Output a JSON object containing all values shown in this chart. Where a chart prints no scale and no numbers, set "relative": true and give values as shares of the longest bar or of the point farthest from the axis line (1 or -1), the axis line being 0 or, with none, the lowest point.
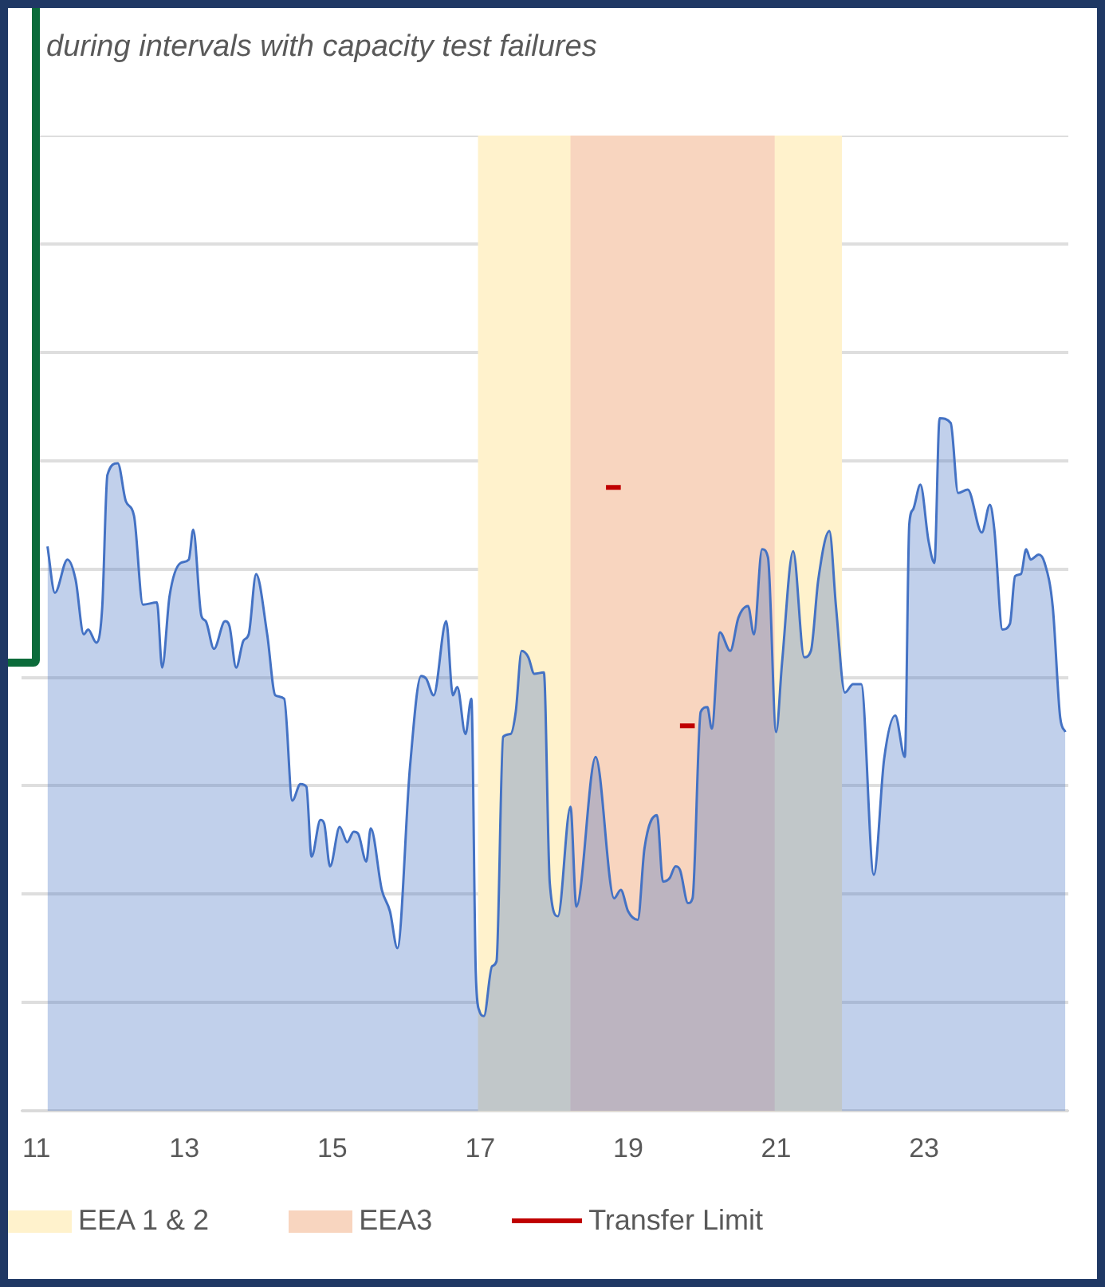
{
  "chart_data": {
    "type": "area",
    "title": "during intervals with capacity test failures",
    "relative": true,
    "xlim": [
      10.8,
      24.95
    ],
    "xticks": [
      11,
      13,
      15,
      17,
      19,
      21,
      23
    ],
    "grid": "y",
    "legend": "bottom",
    "bands": [
      {
        "axis": "x",
        "from": 16.97,
        "to": 21.89,
        "label": "EEA 1 & 2",
        "color": "#fff2cc"
      },
      {
        "axis": "x",
        "from": 18.22,
        "to": 20.98,
        "label": "EEA3",
        "color": "#f8d5bf"
      }
    ],
    "series": [
      {
        "color": "#4472c4",
        "x": [
          11.15,
          11.25,
          11.42,
          11.53,
          11.64,
          11.7,
          11.81,
          11.89,
          11.96,
          12.1,
          12.21,
          12.32,
          12.44,
          12.63,
          12.7,
          12.8,
          12.95,
          13.06,
          13.12,
          13.23,
          13.29,
          13.4,
          13.55,
          13.61,
          13.7,
          13.8,
          13.87,
          13.97,
          14.12,
          14.23,
          14.35,
          14.46,
          14.57,
          14.65,
          14.72,
          14.84,
          14.89,
          14.97,
          15.1,
          15.2,
          15.29,
          15.35,
          15.46,
          15.52,
          15.67,
          15.78,
          15.88,
          16.05,
          16.2,
          16.27,
          16.37,
          16.54,
          16.63,
          16.69,
          16.8,
          16.88,
          16.94,
          16.99,
          17.05,
          17.16,
          17.22,
          17.31,
          17.41,
          17.48,
          17.56,
          17.65,
          17.73,
          17.86,
          17.94,
          18.05,
          18.22,
          18.3,
          18.56,
          18.81,
          18.9,
          19,
          19.13,
          19.22,
          19.39,
          19.47,
          19.56,
          19.64,
          19.7,
          19.81,
          19.87,
          19.98,
          20.07,
          20.13,
          20.24,
          20.38,
          20.49,
          20.62,
          20.7,
          20.81,
          20.89,
          21,
          21.08,
          21.23,
          21.38,
          21.47,
          21.57,
          21.72,
          21.81,
          21.93,
          22.04,
          22.15,
          22.32,
          22.46,
          22.61,
          22.74,
          22.8,
          22.85,
          22.95,
          23.06,
          23.14,
          23.21,
          23.36,
          23.46,
          23.59,
          23.78,
          23.89,
          23.95,
          24.06,
          24.16,
          24.23,
          24.31,
          24.38,
          24.44,
          24.55,
          24.63,
          24.74,
          24.84,
          24.91
        ],
        "values": [
          0.815,
          0.748,
          0.796,
          0.767,
          0.688,
          0.695,
          0.676,
          0.727,
          0.918,
          0.935,
          0.88,
          0.859,
          0.731,
          0.734,
          0.64,
          0.743,
          0.791,
          0.796,
          0.839,
          0.715,
          0.707,
          0.667,
          0.707,
          0.7,
          0.64,
          0.679,
          0.688,
          0.775,
          0.688,
          0.6,
          0.595,
          0.448,
          0.472,
          0.468,
          0.367,
          0.42,
          0.415,
          0.353,
          0.41,
          0.388,
          0.403,
          0.4,
          0.36,
          0.408,
          0.319,
          0.288,
          0.235,
          0.496,
          0.628,
          0.624,
          0.6,
          0.707,
          0.6,
          0.612,
          0.544,
          0.595,
          0.199,
          0.144,
          0.137,
          0.209,
          0.216,
          0.54,
          0.544,
          0.576,
          0.664,
          0.655,
          0.631,
          0.633,
          0.329,
          0.281,
          0.439,
          0.295,
          0.511,
          0.307,
          0.319,
          0.288,
          0.276,
          0.379,
          0.427,
          0.331,
          0.336,
          0.353,
          0.348,
          0.3,
          0.307,
          0.576,
          0.583,
          0.552,
          0.691,
          0.664,
          0.712,
          0.729,
          0.688,
          0.811,
          0.799,
          0.547,
          0.647,
          0.808,
          0.655,
          0.664,
          0.767,
          0.837,
          0.727,
          0.604,
          0.616,
          0.616,
          0.341,
          0.508,
          0.571,
          0.511,
          0.847,
          0.868,
          0.904,
          0.823,
          0.791,
          1,
          0.993,
          0.892,
          0.897,
          0.835,
          0.875,
          0.839,
          0.695,
          0.703,
          0.772,
          0.775,
          0.811,
          0.796,
          0.803,
          0.791,
          0.727,
          0.568,
          0.547
        ]
      },
      {
        "type": "line",
        "name": "Transfer Limit",
        "color": "#c00000",
        "x": [
          18.7,
          18.9,
          19.3,
          19.7,
          19.9
        ],
        "values": [
          0.9,
          0.9,
          null,
          0.556,
          0.556
        ]
      }
    ]
  }
}
